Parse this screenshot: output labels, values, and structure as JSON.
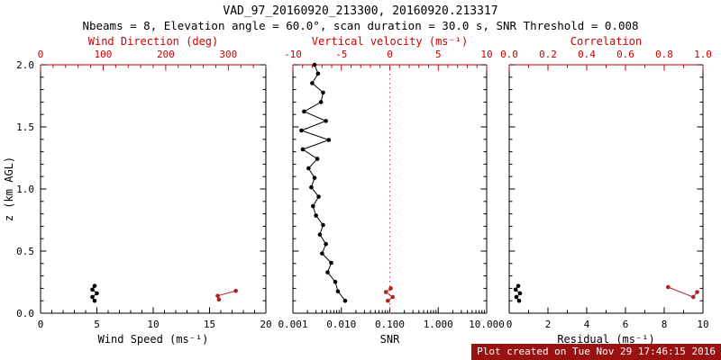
{
  "header": {
    "title": "VAD_97_20160920_213300, 20160920.213317",
    "subtitle": "Nbeams = 8, Elevation angle = 60.0°, scan duration = 30.0 s, SNR Threshold = 0.008"
  },
  "footer": {
    "text": "Plot created on Tue Nov 29 17:46:15 2016"
  },
  "colors": {
    "axis": "#000000",
    "secondary_axis": "#cc0000",
    "series_black": "#000000",
    "series_red": "#b22222",
    "ref_line": "#cc4444",
    "footer_bg": "#991111",
    "footer_fg": "#ffffff",
    "background": "#ffffff"
  },
  "chart_data": {
    "type": "line",
    "title": "VAD_97_20160920_213300, 20160920.213317",
    "subtitle": "Nbeams = 8, Elevation angle = 60.0°, scan duration = 30.0 s, SNR Threshold = 0.008",
    "y_axis": {
      "label": "z (km AGL)",
      "min": 0,
      "max": 2,
      "ticks": [
        0,
        0.5,
        1,
        1.5,
        2
      ],
      "tick_labels": [
        "0.0",
        "0.5",
        "1.0",
        "1.5",
        "2.0"
      ],
      "minor": 4
    },
    "panels": [
      {
        "id": "wind",
        "bottom_axis": {
          "label": "Wind Speed (ms⁻¹)",
          "min": 0,
          "max": 20,
          "ticks": [
            0,
            5,
            10,
            15,
            20
          ],
          "tick_labels": [
            "0",
            "5",
            "10",
            "15",
            "20"
          ],
          "minor": 4
        },
        "top_axis": {
          "label": "Wind Direction (deg)",
          "min": 0,
          "max": 360,
          "ticks": [
            0,
            100,
            200,
            300
          ],
          "tick_labels": [
            "0",
            "100",
            "200",
            "300"
          ],
          "minor": 4
        },
        "series": [
          {
            "name": "wind-speed",
            "axis": "bottom",
            "color": "black",
            "points": [
              [
                4.8,
                0.22
              ],
              [
                4.6,
                0.19
              ],
              [
                5.0,
                0.16
              ],
              [
                4.6,
                0.13
              ],
              [
                4.8,
                0.1
              ]
            ]
          },
          {
            "name": "wind-direction",
            "axis": "top",
            "color": "red",
            "points": [
              [
                285,
                0.11
              ],
              [
                283,
                0.14
              ],
              [
                312,
                0.18
              ]
            ]
          }
        ]
      },
      {
        "id": "snr",
        "bottom_axis": {
          "label": "SNR",
          "log": true,
          "min": 0.001,
          "max": 10,
          "ticks": [
            0.001,
            0.01,
            0.1,
            1,
            10
          ],
          "tick_labels": [
            "0.001",
            "0.010",
            "0.100",
            "1.000",
            "10.000"
          ]
        },
        "top_axis": {
          "label": "Vertical velocity (ms⁻¹)",
          "min": -10,
          "max": 10,
          "ticks": [
            -10,
            -5,
            0,
            5,
            10
          ],
          "tick_labels": [
            "-10",
            "-5",
            "0",
            "5",
            "10"
          ],
          "minor": 4
        },
        "ref_line": {
          "axis": "top",
          "value": 0
        },
        "series": [
          {
            "name": "snr-profile",
            "axis": "bottom",
            "color": "black",
            "points": [
              [
                0.012,
                0.1
              ],
              [
                0.0085,
                0.176
              ],
              [
                0.0075,
                0.252
              ],
              [
                0.0052,
                0.329
              ],
              [
                0.0062,
                0.405
              ],
              [
                0.004,
                0.481
              ],
              [
                0.0048,
                0.557
              ],
              [
                0.0036,
                0.633
              ],
              [
                0.0042,
                0.71
              ],
              [
                0.003,
                0.786
              ],
              [
                0.0026,
                0.862
              ],
              [
                0.0034,
                0.938
              ],
              [
                0.0024,
                1.014
              ],
              [
                0.0028,
                1.09
              ],
              [
                0.0021,
                1.167
              ],
              [
                0.0032,
                1.243
              ],
              [
                0.0016,
                1.319
              ],
              [
                0.0055,
                1.395
              ],
              [
                0.0015,
                1.471
              ],
              [
                0.0048,
                1.548
              ],
              [
                0.0017,
                1.624
              ],
              [
                0.0038,
                1.7
              ],
              [
                0.0042,
                1.776
              ],
              [
                0.0025,
                1.852
              ],
              [
                0.0033,
                1.929
              ],
              [
                0.0028,
                2.0
              ]
            ]
          },
          {
            "name": "vertical-velocity",
            "axis": "top",
            "color": "red",
            "points": [
              [
                -0.2,
                0.1
              ],
              [
                0.3,
                0.13
              ],
              [
                -0.4,
                0.17
              ],
              [
                0.1,
                0.2
              ]
            ]
          }
        ]
      },
      {
        "id": "residual",
        "bottom_axis": {
          "label": "Residual (ms⁻¹)",
          "min": 0,
          "max": 10,
          "ticks": [
            0,
            2,
            4,
            6,
            8,
            10
          ],
          "tick_labels": [
            "0",
            "2",
            "4",
            "6",
            "8",
            "10"
          ],
          "minor": 1
        },
        "top_axis": {
          "label": "Correlation",
          "min": 0,
          "max": 1,
          "ticks": [
            0,
            0.2,
            0.4,
            0.6,
            0.8,
            1.0
          ],
          "tick_labels": [
            "0.0",
            "0.2",
            "0.4",
            "0.6",
            "0.8",
            "1.0"
          ],
          "minor": 1
        },
        "series": [
          {
            "name": "residual",
            "axis": "bottom",
            "color": "black",
            "points": [
              [
                0.47,
                0.22
              ],
              [
                0.33,
                0.19
              ],
              [
                0.56,
                0.16
              ],
              [
                0.37,
                0.13
              ],
              [
                0.51,
                0.1
              ]
            ]
          },
          {
            "name": "correlation",
            "axis": "top",
            "color": "red",
            "points": [
              [
                0.82,
                0.21
              ],
              [
                0.95,
                0.13
              ],
              [
                0.97,
                0.17
              ]
            ]
          }
        ]
      }
    ]
  }
}
